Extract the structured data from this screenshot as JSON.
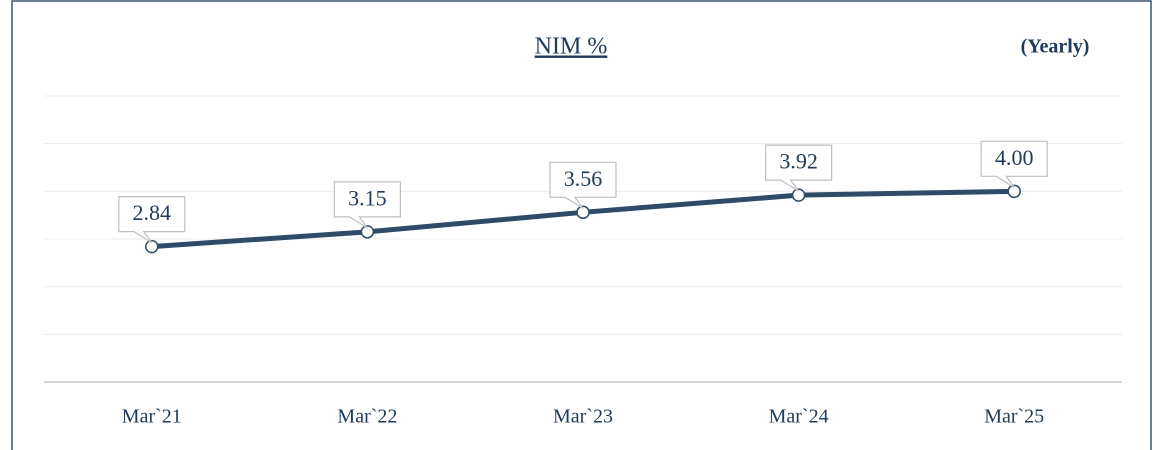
{
  "chart_data": {
    "type": "line",
    "title": "NIM %",
    "annotation": "(Yearly)",
    "categories": [
      "Mar`21",
      "Mar`22",
      "Mar`23",
      "Mar`24",
      "Mar`25"
    ],
    "series": [
      {
        "name": "NIM %",
        "color": "#2f4b67",
        "values": [
          2.84,
          3.15,
          3.56,
          3.92,
          4.0
        ],
        "value_labels": [
          "2.84",
          "3.15",
          "3.56",
          "3.92",
          "4.00"
        ]
      }
    ],
    "ylim": [
      0,
      6
    ],
    "yticks": [
      0,
      1,
      2,
      3,
      4,
      5,
      6
    ],
    "grid": true
  }
}
